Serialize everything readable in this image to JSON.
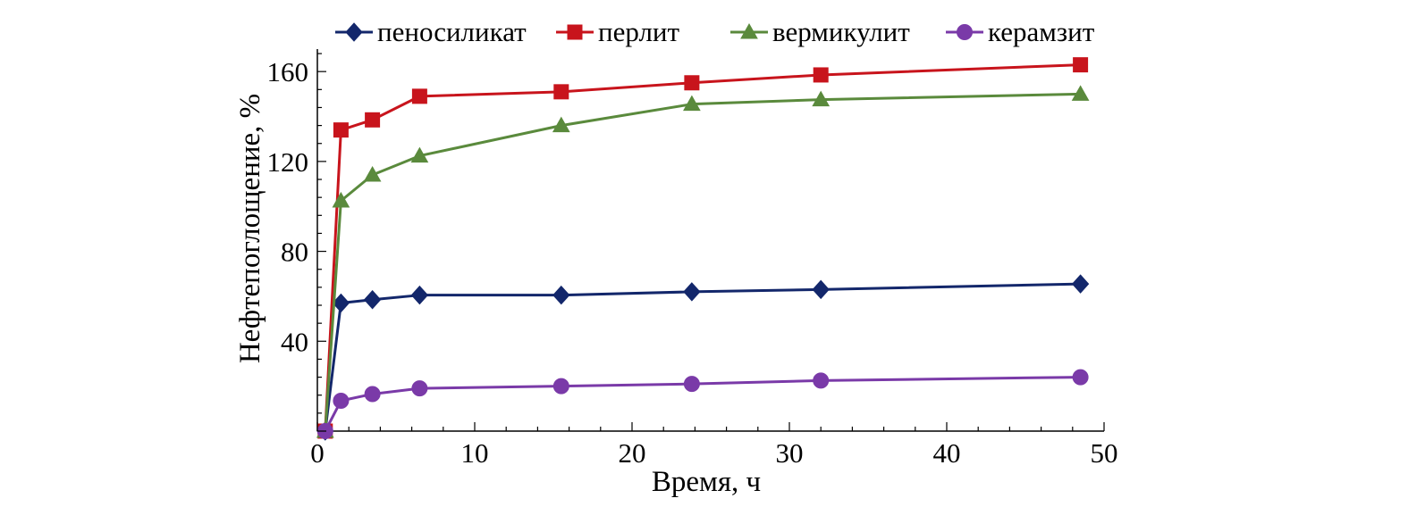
{
  "chart_data": {
    "type": "line",
    "xlabel": "Время, ч",
    "ylabel": "Нефтепоглощение, %",
    "xlim": [
      0,
      50
    ],
    "ylim": [
      0,
      170
    ],
    "xticks": [
      0,
      10,
      20,
      30,
      40,
      50
    ],
    "yticks": [
      40,
      80,
      120,
      160
    ],
    "grid": false,
    "legend_position": "top",
    "series": [
      {
        "name": "пеносиликат",
        "marker": "diamond",
        "color": "#13276b",
        "x": [
          0.5,
          1.5,
          3.5,
          6.5,
          15.5,
          23.8,
          32,
          48.5
        ],
        "values": [
          0,
          57,
          58.5,
          60.5,
          60.5,
          62,
          63,
          65.5
        ]
      },
      {
        "name": "перлит",
        "marker": "square",
        "color": "#c8141c",
        "x": [
          0.5,
          1.5,
          3.5,
          6.5,
          15.5,
          23.8,
          32,
          48.5
        ],
        "values": [
          0,
          134,
          138.5,
          149,
          151,
          155,
          158.5,
          163
        ]
      },
      {
        "name": "вермикулит",
        "marker": "triangle",
        "color": "#5a8a3c",
        "x": [
          0.5,
          1.5,
          3.5,
          6.5,
          15.5,
          23.8,
          32,
          48.5
        ],
        "values": [
          0,
          102.5,
          114,
          122.5,
          136,
          145.5,
          147.5,
          150
        ]
      },
      {
        "name": "керамзит",
        "marker": "circle",
        "color": "#7a3aa8",
        "x": [
          0.5,
          1.5,
          3.5,
          6.5,
          15.5,
          23.8,
          32,
          48.5
        ],
        "values": [
          0,
          13.5,
          16.5,
          19,
          20,
          21,
          22.5,
          24
        ]
      }
    ]
  }
}
